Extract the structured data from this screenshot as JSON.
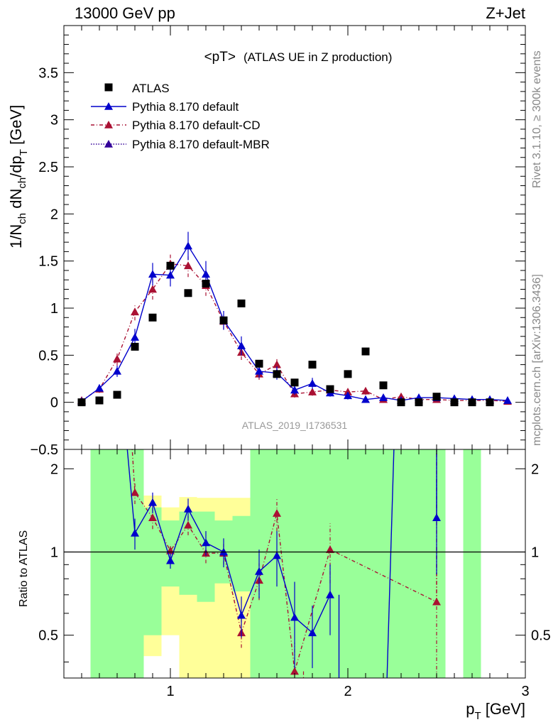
{
  "header": {
    "left": "13000 GeV pp",
    "right": "Z+Jet"
  },
  "side": {
    "rivet": "Rivet 3.1.10, ≥ 300k events",
    "mcplots": "mcplots.cern.ch [arXiv:1306.3436]"
  },
  "plot_title_main": "<pT>",
  "plot_title_sub": "(ATLAS UE in Z production)",
  "watermark": "ATLAS_2019_I1736531",
  "ylabel_top_parts": [
    "1/N",
    "ch",
    " dN",
    "ch",
    "/dp",
    "T",
    " [GeV]"
  ],
  "ylabel_bottom": "Ratio to ATLAS",
  "xlabel_parts": [
    "p",
    "T",
    " [GeV]"
  ],
  "legend": [
    {
      "label": "ATLAS"
    },
    {
      "label": "Pythia 8.170 default"
    },
    {
      "label": "Pythia 8.170 default-CD"
    },
    {
      "label": "Pythia 8.170 default-MBR"
    }
  ],
  "colors": {
    "atlas": "#000000",
    "default": "#0000cc",
    "cd": "#aa1133",
    "mbr": "#330099",
    "band_inner": "#99ff99",
    "band_outer": "#ffff99"
  },
  "chart_data": [
    {
      "type": "scatter",
      "xlim": [
        0.4,
        3.0
      ],
      "ylim": [
        -0.5,
        4.0
      ],
      "x_ticks": [
        1,
        2,
        3
      ],
      "y_ticks": [
        -0.5,
        0,
        0.5,
        1,
        1.5,
        2,
        2.5,
        3,
        3.5
      ],
      "x": [
        0.5,
        0.6,
        0.7,
        0.8,
        0.9,
        1.0,
        1.1,
        1.2,
        1.3,
        1.4,
        1.5,
        1.6,
        1.7,
        1.8,
        1.9,
        2.0,
        2.1,
        2.2,
        2.3,
        2.4,
        2.5,
        2.6,
        2.7,
        2.8,
        2.9
      ],
      "series": [
        {
          "name": "ATLAS",
          "values": [
            0.0,
            0.02,
            0.08,
            0.59,
            0.9,
            1.45,
            1.16,
            1.26,
            0.87,
            1.05,
            0.41,
            0.3,
            0.21,
            0.4,
            0.14,
            0.3,
            0.54,
            0.18,
            0.0,
            0.0,
            0.06,
            0.0,
            0.0,
            0.0,
            null
          ]
        },
        {
          "name": "Pythia 8.170 default",
          "values": [
            0.01,
            0.15,
            0.33,
            0.69,
            1.36,
            1.35,
            1.66,
            1.36,
            0.87,
            0.6,
            0.33,
            0.31,
            0.13,
            0.2,
            0.1,
            0.07,
            0.03,
            0.05,
            0.02,
            0.05,
            0.05,
            0.04,
            0.03,
            0.03,
            0.02
          ],
          "errors": [
            0.02,
            0.04,
            0.06,
            0.09,
            0.12,
            0.12,
            0.15,
            0.14,
            0.1,
            0.1,
            0.07,
            0.07,
            0.05,
            0.06,
            0.04,
            0.04,
            0.03,
            0.03,
            0.02,
            0.03,
            0.03,
            0.02,
            0.02,
            0.02,
            0.02
          ]
        },
        {
          "name": "Pythia 8.170 default-CD",
          "values": [
            0.02,
            0.14,
            0.46,
            0.96,
            1.2,
            1.47,
            1.45,
            1.24,
            0.86,
            0.53,
            0.3,
            0.4,
            0.09,
            0.11,
            0.13,
            0.11,
            0.12,
            0.03,
            0.06,
            0.03,
            0.03,
            0.02,
            0.02,
            0.02,
            0.01
          ],
          "errors": [
            0.02,
            0.04,
            0.07,
            0.09,
            0.11,
            0.12,
            0.12,
            0.11,
            0.09,
            0.08,
            0.06,
            0.07,
            0.04,
            0.04,
            0.04,
            0.04,
            0.04,
            0.02,
            0.03,
            0.02,
            0.02,
            0.02,
            0.02,
            0.02,
            0.01
          ]
        },
        {
          "name": "Pythia 8.170 default-MBR",
          "values": []
        }
      ]
    },
    {
      "type": "line",
      "xlim": [
        0.4,
        3.0
      ],
      "ylim": [
        0.35,
        2.35
      ],
      "y_ticks": [
        0.5,
        1,
        2
      ],
      "reference_line": 1,
      "series": [
        {
          "name": "Pythia 8.170 default",
          "x": [
            0.8,
            0.9,
            1.0,
            1.1,
            1.2,
            1.3,
            1.4,
            1.5,
            1.6,
            1.7,
            1.8,
            1.9,
            2.5
          ],
          "values": [
            1.17,
            1.51,
            0.93,
            1.43,
            1.08,
            1.0,
            0.59,
            0.85,
            0.97,
            0.58,
            0.51,
            0.7,
            1.33
          ],
          "errors": [
            0.15,
            0.13,
            0.06,
            0.13,
            0.11,
            0.12,
            0.1,
            0.17,
            0.22,
            0.2,
            0.13,
            0.2,
            0.5
          ]
        },
        {
          "name": "Pythia 8.170 default-CD",
          "x": [
            0.8,
            0.9,
            1.0,
            1.1,
            1.2,
            1.3,
            1.4,
            1.5,
            1.6,
            1.7,
            1.9,
            2.5
          ],
          "values": [
            1.64,
            1.33,
            1.01,
            1.25,
            0.99,
            0.99,
            0.51,
            0.79,
            1.38,
            0.37,
            1.02,
            0.66
          ],
          "errors": [
            0.15,
            0.12,
            0.06,
            0.1,
            0.08,
            0.09,
            0.06,
            0.12,
            0.19,
            0.1,
            0.25,
            0.4
          ]
        }
      ],
      "bands": [
        {
          "x0": 0.55,
          "x1": 0.65,
          "inner": [
            0.0,
            2.4
          ],
          "outer": [
            0.0,
            2.4
          ]
        },
        {
          "x0": 0.65,
          "x1": 0.75,
          "inner": [
            0.0,
            2.4
          ],
          "outer": [
            0.0,
            2.4
          ]
        },
        {
          "x0": 0.75,
          "x1": 0.85,
          "inner": [
            0.0,
            2.4
          ],
          "outer": [
            0.0,
            2.4
          ]
        },
        {
          "x0": 0.85,
          "x1": 0.95,
          "inner": [
            0.5,
            1.45
          ],
          "outer": [
            0.42,
            1.6
          ]
        },
        {
          "x0": 0.95,
          "x1": 1.05,
          "inner": [
            0.75,
            1.3
          ],
          "outer": [
            0.5,
            1.45
          ]
        },
        {
          "x0": 1.05,
          "x1": 1.15,
          "inner": [
            0.7,
            1.4
          ],
          "outer": [
            0.35,
            1.58
          ]
        },
        {
          "x0": 1.15,
          "x1": 1.25,
          "inner": [
            0.66,
            1.4
          ],
          "outer": [
            0.35,
            1.57
          ]
        },
        {
          "x0": 1.25,
          "x1": 1.35,
          "inner": [
            0.77,
            1.3
          ],
          "outer": [
            0.35,
            1.57
          ]
        },
        {
          "x0": 1.35,
          "x1": 1.45,
          "inner": [
            0.72,
            1.35
          ],
          "outer": [
            0.35,
            1.57
          ]
        },
        {
          "x0": 1.45,
          "x1": 1.55,
          "inner": [
            0.35,
            2.4
          ],
          "outer": [
            0.35,
            2.4
          ]
        },
        {
          "x0": 1.55,
          "x1": 1.65,
          "inner": [
            0.35,
            2.4
          ],
          "outer": [
            0.35,
            2.4
          ]
        },
        {
          "x0": 1.65,
          "x1": 1.75,
          "inner": [
            0.35,
            2.4
          ],
          "outer": [
            0.35,
            2.4
          ]
        },
        {
          "x0": 1.75,
          "x1": 1.85,
          "inner": [
            0.35,
            2.4
          ],
          "outer": [
            0.35,
            2.4
          ]
        },
        {
          "x0": 1.85,
          "x1": 1.95,
          "inner": [
            0.35,
            2.4
          ],
          "outer": [
            0.35,
            2.4
          ]
        },
        {
          "x0": 1.95,
          "x1": 2.05,
          "inner": [
            0.35,
            2.4
          ],
          "outer": [
            0.35,
            2.4
          ]
        },
        {
          "x0": 2.05,
          "x1": 2.15,
          "inner": [
            0.35,
            2.4
          ],
          "outer": [
            0.35,
            2.4
          ]
        },
        {
          "x0": 2.15,
          "x1": 2.25,
          "inner": [
            0.35,
            2.4
          ],
          "outer": [
            0.35,
            2.4
          ]
        },
        {
          "x0": 2.25,
          "x1": 2.35,
          "inner": [
            0.35,
            2.4
          ],
          "outer": [
            0.35,
            2.4
          ]
        },
        {
          "x0": 2.35,
          "x1": 2.45,
          "inner": [
            0.35,
            2.4
          ],
          "outer": [
            0.35,
            2.4
          ]
        },
        {
          "x0": 2.45,
          "x1": 2.55,
          "inner": [
            0.35,
            2.4
          ],
          "outer": [
            0.35,
            2.4
          ]
        },
        {
          "x0": 2.65,
          "x1": 2.75,
          "inner": [
            0.35,
            2.4
          ],
          "outer": [
            0.35,
            2.4
          ]
        }
      ]
    }
  ]
}
